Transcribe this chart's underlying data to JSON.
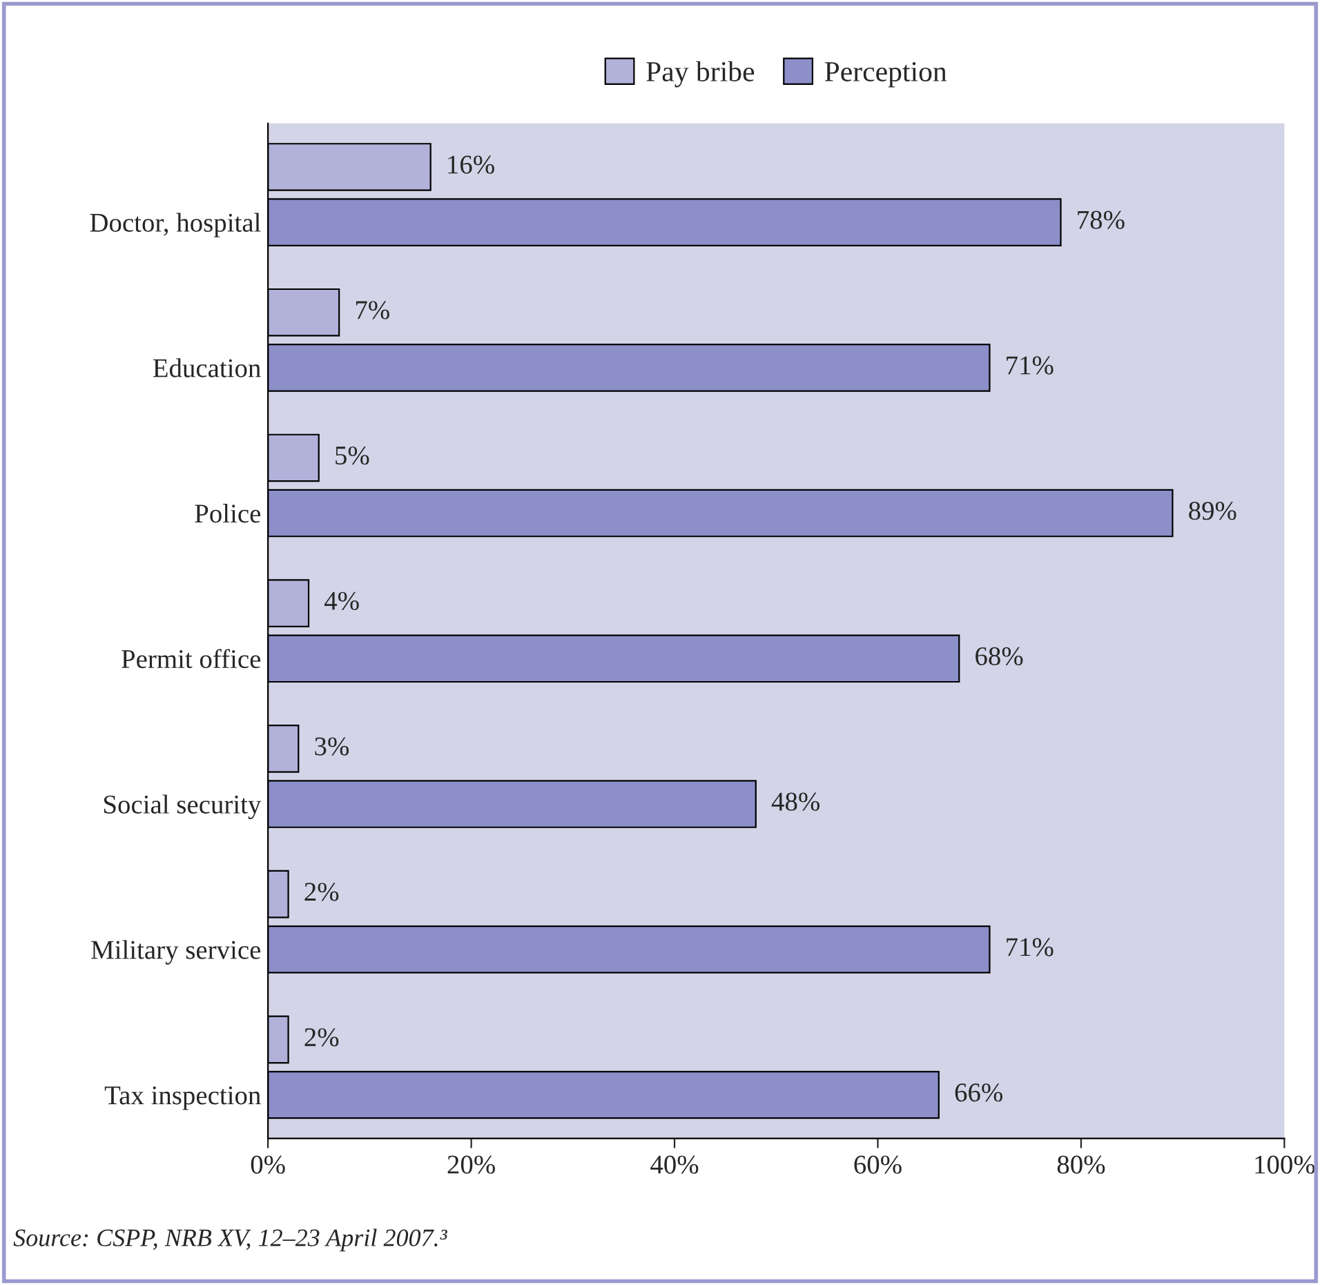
{
  "chart_data": {
    "type": "bar",
    "orientation": "horizontal",
    "categories": [
      "Doctor, hospital",
      "Education",
      "Police",
      "Permit office",
      "Social security",
      "Military service",
      "Tax inspection"
    ],
    "series": [
      {
        "name": "Pay bribe",
        "color": "#b1b1d9",
        "values": [
          16,
          7,
          5,
          4,
          3,
          2,
          2
        ],
        "value_labels": [
          "16%",
          "7%",
          "5%",
          "4%",
          "3%",
          "2%",
          "2%"
        ]
      },
      {
        "name": "Perception",
        "color": "#8c8fc8",
        "values": [
          78,
          71,
          89,
          68,
          48,
          71,
          66
        ],
        "value_labels": [
          "78%",
          "71%",
          "89%",
          "68%",
          "48%",
          "71%",
          "66%"
        ]
      }
    ],
    "xlim": [
      0,
      100
    ],
    "xticks": [
      {
        "value": 0,
        "label": "0%"
      },
      {
        "value": 20,
        "label": "20%"
      },
      {
        "value": 40,
        "label": "40%"
      },
      {
        "value": 60,
        "label": "60%"
      },
      {
        "value": 80,
        "label": "80%"
      },
      {
        "value": 100,
        "label": "100%"
      }
    ],
    "legend": "top",
    "grid": false,
    "annotations": [
      "Source: CSPP, NRB XV, 12–23 April 2007.³"
    ]
  }
}
